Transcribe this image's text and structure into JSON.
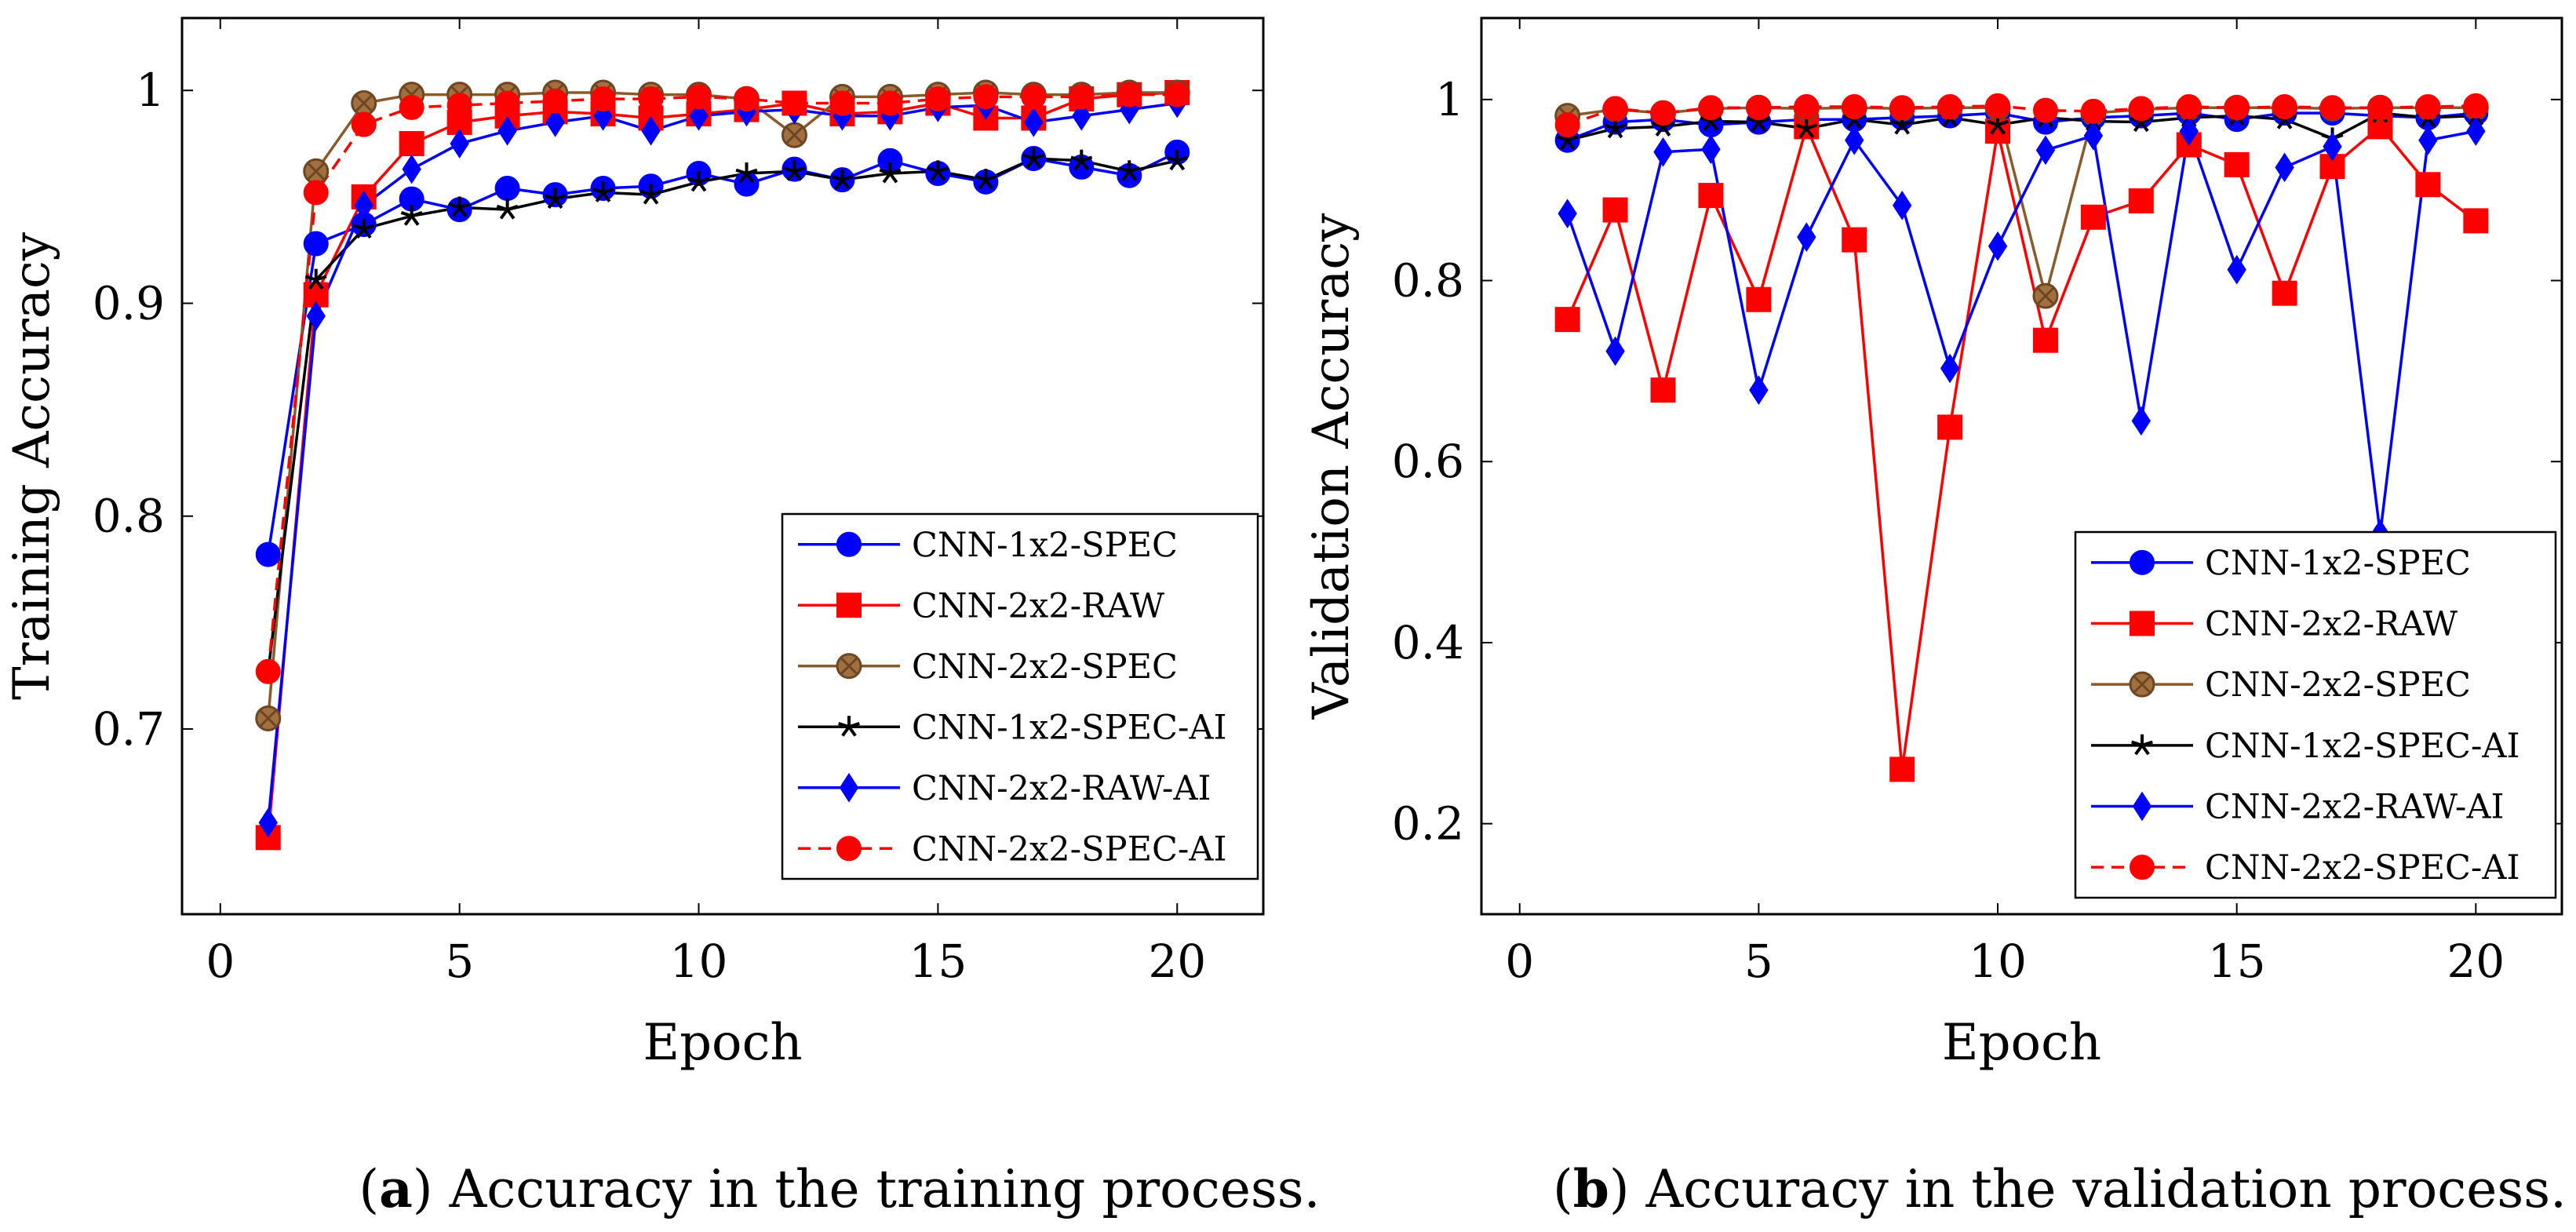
{
  "chart_data": [
    {
      "type": "line",
      "caption_letter": "a",
      "caption_text": "Accuracy in the training process.",
      "xlabel": "Epoch",
      "ylabel": "Training Accuracy",
      "xlim": [
        -0.8,
        21.8
      ],
      "ylim": [
        0.613,
        1.034
      ],
      "xticks": [
        0,
        5,
        10,
        15,
        20
      ],
      "yticks": [
        0.7,
        0.8,
        0.9,
        1
      ],
      "ytick_labels": [
        "0.7",
        "0.8",
        "0.9",
        "1"
      ],
      "legend_position": "bottom-right",
      "grid": false,
      "x": [
        1,
        2,
        3,
        4,
        5,
        6,
        7,
        8,
        9,
        10,
        11,
        12,
        13,
        14,
        15,
        16,
        17,
        18,
        19,
        20
      ],
      "series": [
        {
          "name": "CNN-1x2-SPEC",
          "color": "#0000ff",
          "marker": "circle",
          "dashed": false,
          "values": [
            0.782,
            0.928,
            0.937,
            0.949,
            0.944,
            0.954,
            0.951,
            0.954,
            0.955,
            0.961,
            0.956,
            0.963,
            0.958,
            0.967,
            0.961,
            0.957,
            0.968,
            0.964,
            0.96,
            0.971
          ]
        },
        {
          "name": "CNN-2x2-RAW",
          "color": "#ff0000",
          "marker": "square",
          "dashed": false,
          "values": [
            0.649,
            0.904,
            0.95,
            0.975,
            0.985,
            0.988,
            0.99,
            0.989,
            0.987,
            0.989,
            0.991,
            0.994,
            0.989,
            0.99,
            0.994,
            0.987,
            0.987,
            0.996,
            0.998,
            0.999
          ]
        },
        {
          "name": "CNN-2x2-SPEC",
          "color": "#8b5a2b",
          "marker": "otimes",
          "dashed": false,
          "values": [
            0.705,
            0.962,
            0.994,
            0.998,
            0.998,
            0.998,
            0.999,
            0.999,
            0.998,
            0.998,
            0.996,
            0.979,
            0.997,
            0.997,
            0.998,
            0.999,
            0.998,
            0.998,
            0.999,
            0.999
          ]
        },
        {
          "name": "CNN-1x2-SPEC-AI",
          "color": "#000000",
          "marker": "star",
          "dashed": false,
          "values": [
            0.727,
            0.911,
            0.935,
            0.941,
            0.945,
            0.944,
            0.949,
            0.952,
            0.951,
            0.957,
            0.961,
            0.962,
            0.958,
            0.961,
            0.962,
            0.958,
            0.968,
            0.967,
            0.962,
            0.967
          ]
        },
        {
          "name": "CNN-2x2-RAW-AI",
          "color": "#0000ff",
          "marker": "diamond",
          "dashed": false,
          "values": [
            0.656,
            0.894,
            0.946,
            0.963,
            0.975,
            0.981,
            0.985,
            0.988,
            0.981,
            0.988,
            0.99,
            0.991,
            0.988,
            0.988,
            0.992,
            0.993,
            0.985,
            0.988,
            0.991,
            0.994
          ]
        },
        {
          "name": "CNN-2x2-SPEC-AI",
          "color": "#ff0000",
          "marker": "circle",
          "dashed": true,
          "values": [
            0.727,
            0.952,
            0.984,
            0.992,
            0.993,
            0.994,
            0.995,
            0.996,
            0.996,
            0.997,
            0.996,
            0.994,
            0.994,
            0.994,
            0.996,
            0.997,
            0.997,
            0.997,
            0.998,
            0.998
          ]
        }
      ]
    },
    {
      "type": "line",
      "caption_letter": "b",
      "caption_text": "Accuracy in the validation process.",
      "xlabel": "Epoch",
      "ylabel": "Validation Accuracy",
      "xlim": [
        -0.8,
        21.8
      ],
      "ylim": [
        0.1,
        1.09
      ],
      "xticks": [
        0,
        5,
        10,
        15,
        20
      ],
      "yticks": [
        0.2,
        0.4,
        0.6,
        0.8,
        1
      ],
      "ytick_labels": [
        "0.2",
        "0.4",
        "0.6",
        "0.8",
        "1"
      ],
      "legend_position": "bottom-right",
      "grid": false,
      "x": [
        1,
        2,
        3,
        4,
        5,
        6,
        7,
        8,
        9,
        10,
        11,
        12,
        13,
        14,
        15,
        16,
        17,
        18,
        19,
        20
      ],
      "series": [
        {
          "name": "CNN-1x2-SPEC",
          "color": "#0000ff",
          "marker": "circle",
          "dashed": false,
          "values": [
            0.955,
            0.975,
            0.978,
            0.972,
            0.975,
            0.978,
            0.978,
            0.98,
            0.982,
            0.985,
            0.975,
            0.98,
            0.982,
            0.985,
            0.978,
            0.985,
            0.985,
            0.982,
            0.98,
            0.985
          ]
        },
        {
          "name": "CNN-2x2-RAW",
          "color": "#ff0000",
          "marker": "square",
          "dashed": false,
          "values": [
            0.757,
            0.878,
            0.679,
            0.894,
            0.779,
            0.97,
            0.845,
            0.26,
            0.638,
            0.965,
            0.734,
            0.87,
            0.888,
            0.95,
            0.928,
            0.786,
            0.926,
            0.97,
            0.906,
            0.866
          ]
        },
        {
          "name": "CNN-2x2-SPEC",
          "color": "#8b5a2b",
          "marker": "otimes",
          "dashed": false,
          "values": [
            0.982,
            0.989,
            0.985,
            0.99,
            0.991,
            0.99,
            0.991,
            0.99,
            0.991,
            0.991,
            0.783,
            0.985,
            0.989,
            0.991,
            0.991,
            0.991,
            0.99,
            0.991,
            0.991,
            0.991
          ]
        },
        {
          "name": "CNN-1x2-SPEC-AI",
          "color": "#000000",
          "marker": "star",
          "dashed": false,
          "values": [
            0.955,
            0.968,
            0.97,
            0.976,
            0.975,
            0.968,
            0.978,
            0.972,
            0.98,
            0.972,
            0.98,
            0.976,
            0.975,
            0.98,
            0.982,
            0.978,
            0.957,
            0.985,
            0.98,
            0.982
          ]
        },
        {
          "name": "CNN-2x2-RAW-AI",
          "color": "#0000ff",
          "marker": "diamond",
          "dashed": false,
          "values": [
            0.874,
            0.722,
            0.942,
            0.945,
            0.679,
            0.848,
            0.955,
            0.883,
            0.703,
            0.838,
            0.944,
            0.96,
            0.645,
            0.965,
            0.812,
            0.925,
            0.948,
            0.52,
            0.955,
            0.965
          ]
        },
        {
          "name": "CNN-2x2-SPEC-AI",
          "color": "#ff0000",
          "marker": "circle",
          "dashed": true,
          "values": [
            0.972,
            0.99,
            0.985,
            0.991,
            0.991,
            0.992,
            0.992,
            0.991,
            0.992,
            0.993,
            0.988,
            0.987,
            0.99,
            0.992,
            0.991,
            0.992,
            0.991,
            0.991,
            0.992,
            0.993
          ]
        }
      ]
    }
  ]
}
